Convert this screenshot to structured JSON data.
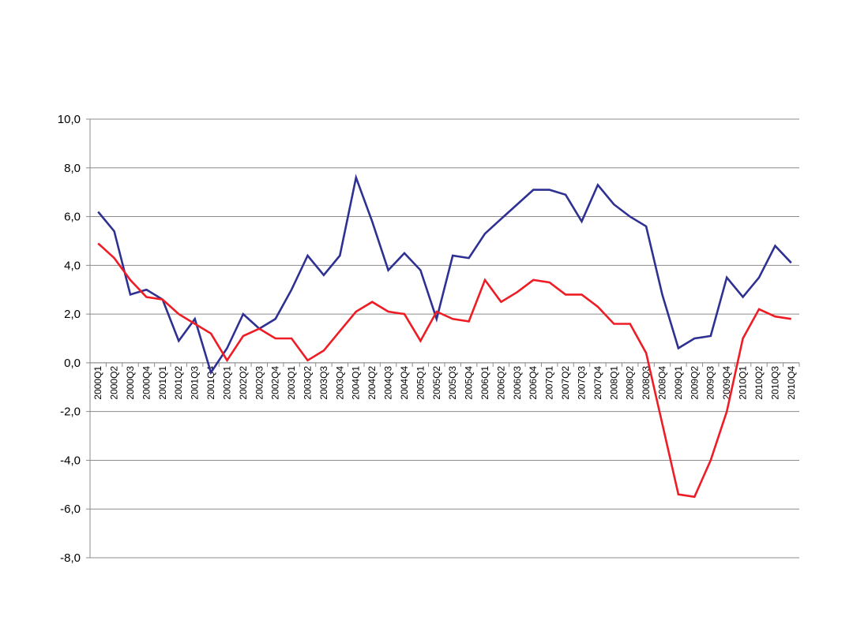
{
  "chart_data": {
    "type": "line",
    "title": "",
    "xlabel": "",
    "ylabel": "",
    "ylim": [
      -8,
      10
    ],
    "yticks": [
      "10,0",
      "8,0",
      "6,0",
      "4,0",
      "2,0",
      "0,0",
      "-2,0",
      "-4,0",
      "-6,0",
      "-8,0"
    ],
    "grid": true,
    "legend": "none",
    "categories": [
      "2000Q1",
      "2000Q2",
      "2000Q3",
      "2000Q4",
      "2001Q1",
      "2001Q2",
      "2001Q3",
      "2001Q4",
      "2002Q1",
      "2002Q2",
      "2002Q3",
      "2002Q4",
      "2003Q1",
      "2003Q2",
      "2003Q3",
      "2003Q4",
      "2004Q1",
      "2004Q2",
      "2004Q3",
      "2004Q4",
      "2005Q1",
      "2005Q2",
      "2005Q3",
      "2005Q4",
      "2006Q1",
      "2006Q2",
      "2006Q3",
      "2006Q4",
      "2007Q1",
      "2007Q2",
      "2007Q3",
      "2007Q4",
      "2008Q1",
      "2008Q2",
      "2008Q3",
      "2008Q4",
      "2009Q1",
      "2009Q2",
      "2009Q3",
      "2009Q4",
      "2010Q1",
      "2010Q2",
      "2010Q3",
      "2010Q4"
    ],
    "series": [
      {
        "color": "#2e3192",
        "values": [
          6.2,
          5.4,
          2.8,
          3.0,
          2.6,
          0.9,
          1.8,
          -0.4,
          0.6,
          2.0,
          1.4,
          1.8,
          3.0,
          4.4,
          3.6,
          4.4,
          7.6,
          5.8,
          3.8,
          4.5,
          3.8,
          1.8,
          4.4,
          4.3,
          5.3,
          5.9,
          6.5,
          7.1,
          7.1,
          6.9,
          5.8,
          7.3,
          6.5,
          6.0,
          5.6,
          2.8,
          0.6,
          1.0,
          1.1,
          3.5,
          2.7,
          3.5,
          4.8,
          4.1
        ]
      },
      {
        "color": "#ee1c25",
        "values": [
          4.9,
          4.3,
          3.4,
          2.7,
          2.6,
          2.0,
          1.6,
          1.2,
          0.1,
          1.1,
          1.4,
          1.0,
          1.0,
          0.1,
          0.5,
          1.3,
          2.1,
          2.5,
          2.1,
          2.0,
          0.9,
          2.1,
          1.8,
          1.7,
          3.4,
          2.5,
          2.9,
          3.4,
          3.3,
          2.8,
          2.8,
          2.3,
          1.6,
          1.6,
          0.4,
          -2.5,
          -5.4,
          -5.5,
          -4.0,
          -2.0,
          1.0,
          2.2,
          1.9,
          1.8
        ]
      }
    ]
  }
}
